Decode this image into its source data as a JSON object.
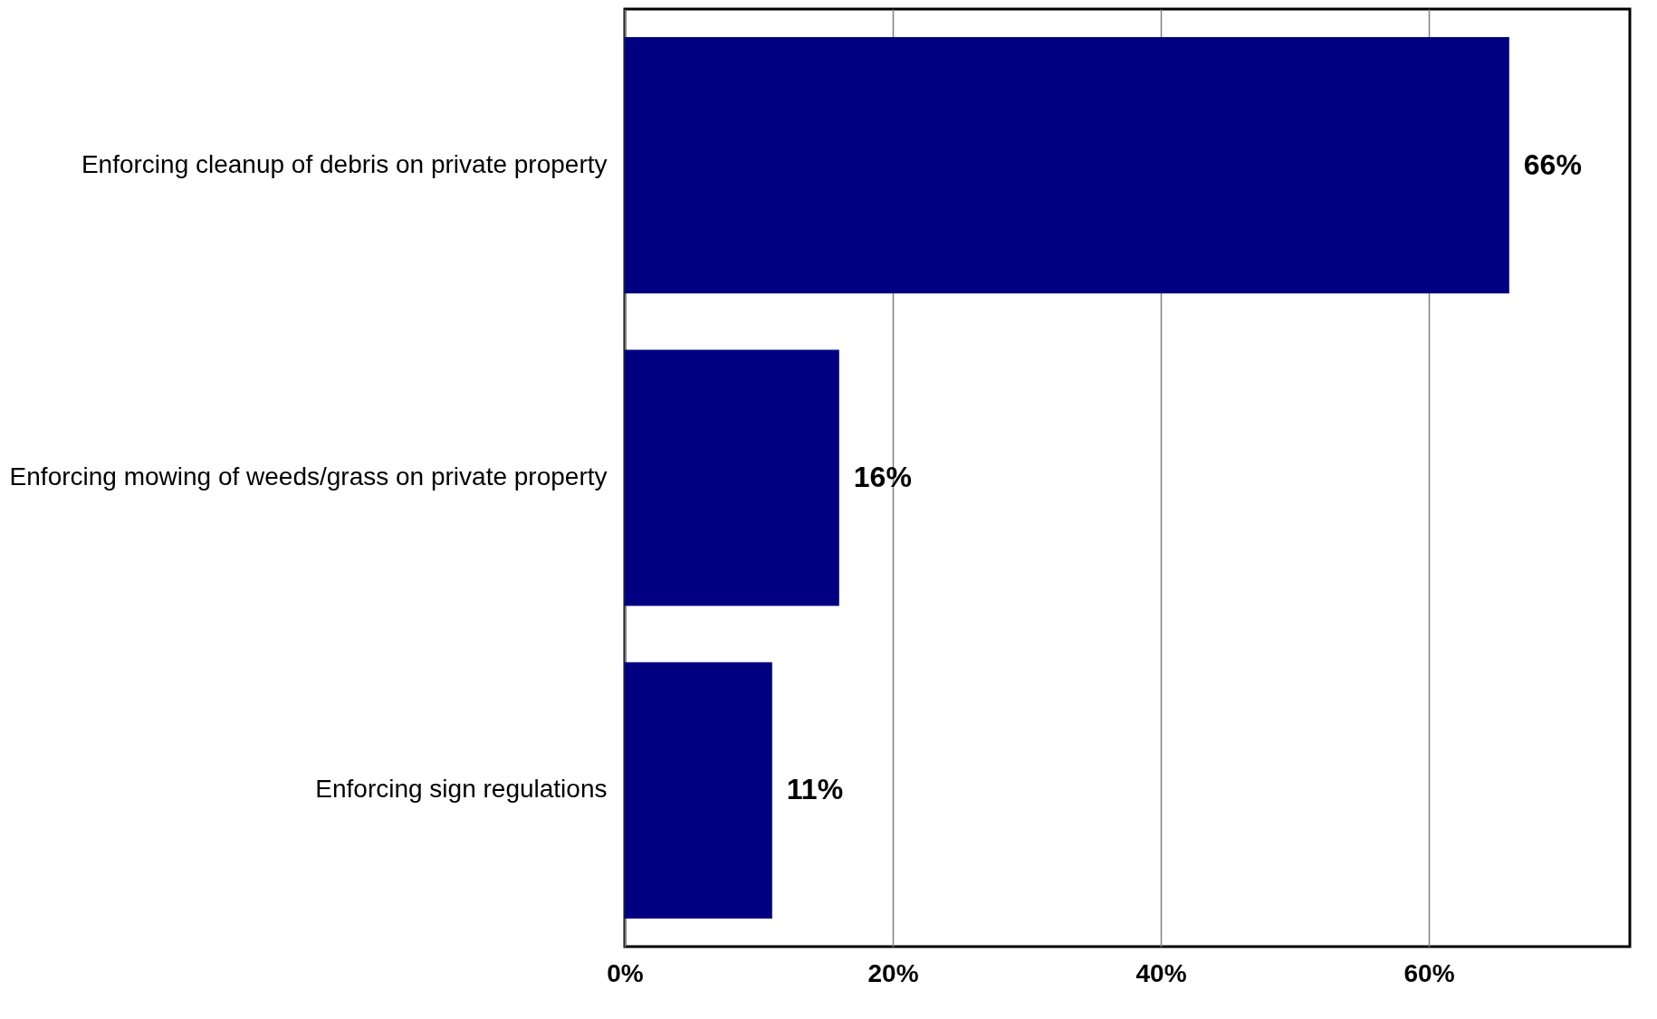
{
  "chart_data": {
    "type": "bar",
    "orientation": "horizontal",
    "categories": [
      "Enforcing cleanup of debris on private property",
      "Enforcing mowing of weeds/grass on private property",
      "Enforcing sign regulations"
    ],
    "values": [
      66,
      16,
      11
    ],
    "color": "#000080",
    "value_labels": [
      "66%",
      "16%",
      "11%"
    ],
    "xlim": [
      0,
      75
    ],
    "xticks": [
      {
        "value": 0,
        "label": "0%"
      },
      {
        "value": 20,
        "label": "20%"
      },
      {
        "value": 40,
        "label": "40%"
      },
      {
        "value": 60,
        "label": "60%"
      }
    ],
    "grid": "x"
  }
}
